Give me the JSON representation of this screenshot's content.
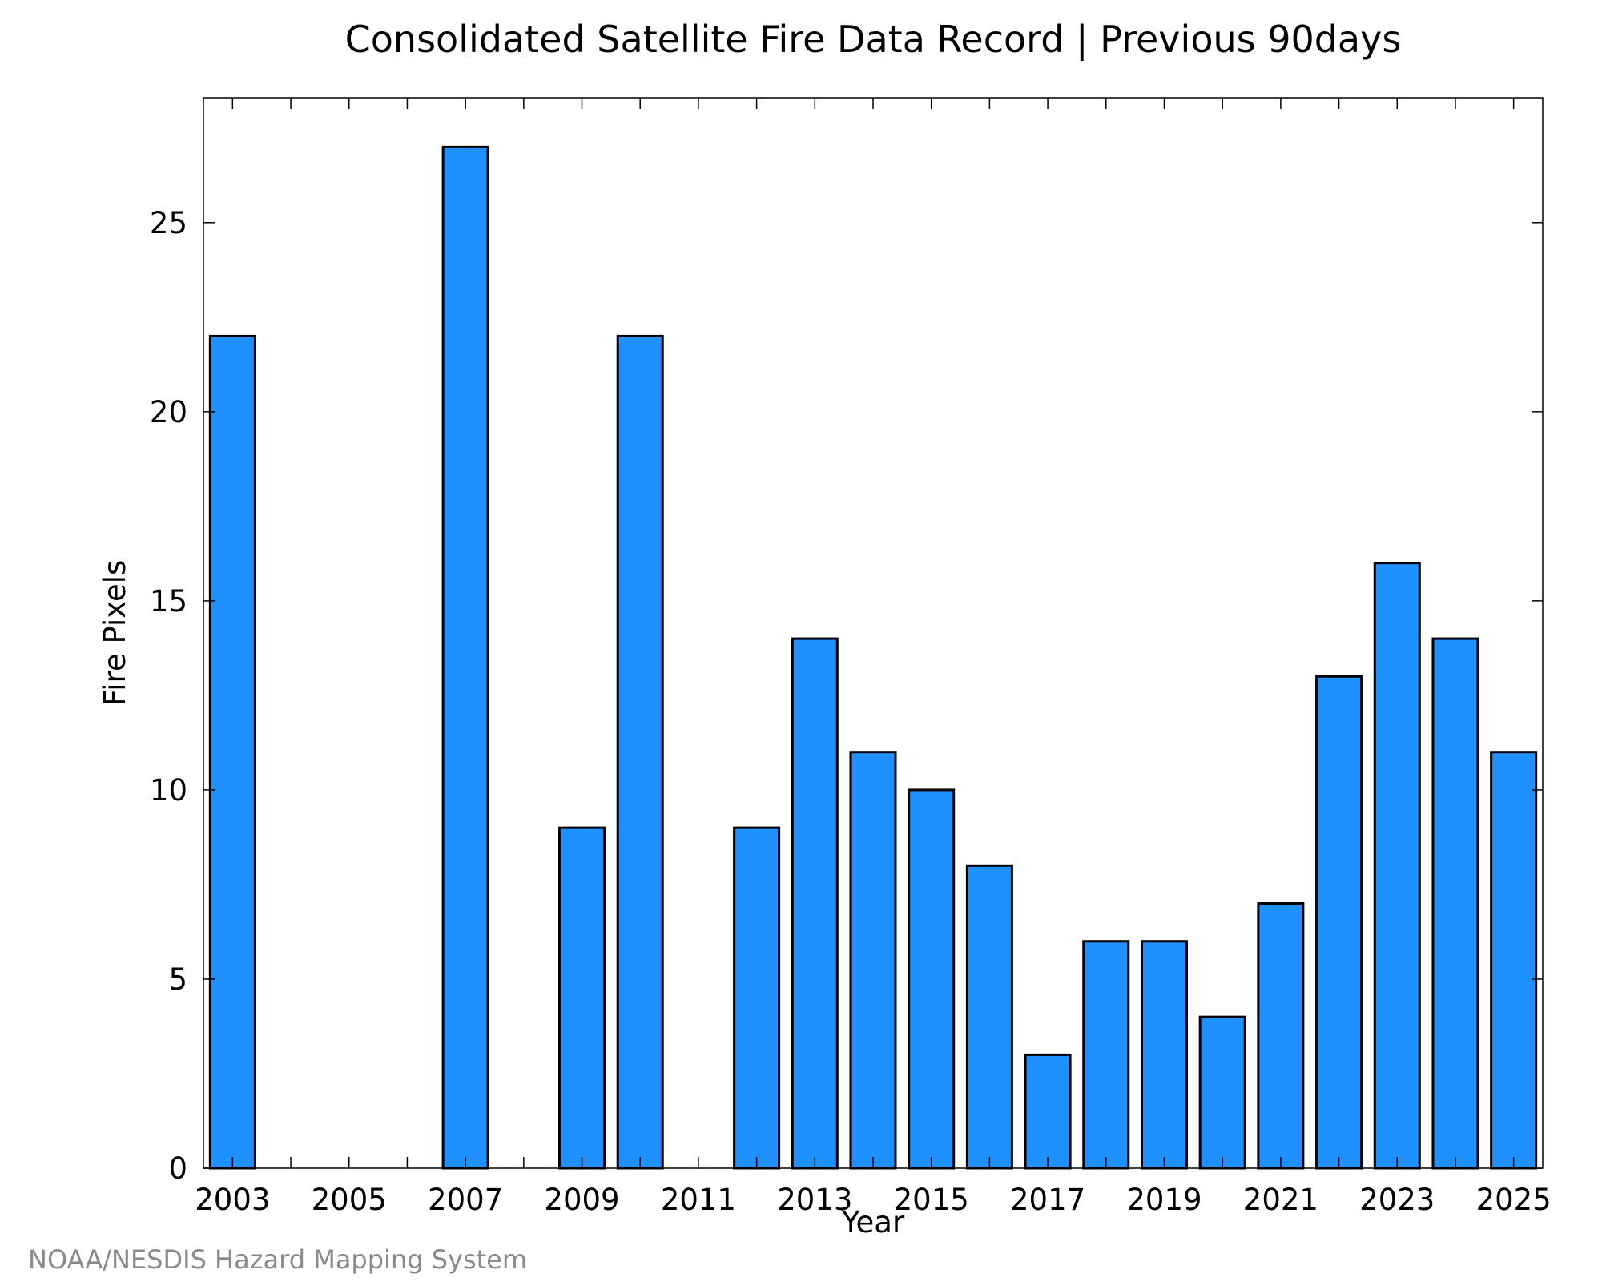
{
  "chart_data": {
    "type": "bar",
    "title": "Consolidated Satellite Fire Data Record | Previous 90days",
    "xlabel": "Year",
    "ylabel": "Fire Pixels",
    "categories": [
      "2003",
      "2004",
      "2005",
      "2006",
      "2007",
      "2008",
      "2009",
      "2010",
      "2011",
      "2012",
      "2013",
      "2014",
      "2015",
      "2016",
      "2017",
      "2018",
      "2019",
      "2020",
      "2021",
      "2022",
      "2023",
      "2024",
      "2025"
    ],
    "values": [
      22,
      0,
      0,
      0,
      27,
      0,
      9,
      22,
      0,
      9,
      14,
      11,
      10,
      8,
      3,
      6,
      6,
      4,
      7,
      13,
      16,
      14,
      11
    ],
    "x_tick_labels": [
      "2003",
      "2005",
      "2007",
      "2009",
      "2011",
      "2013",
      "2015",
      "2017",
      "2019",
      "2021",
      "2023",
      "2025"
    ],
    "y_tick_labels": [
      "0",
      "5",
      "10",
      "15",
      "20",
      "25"
    ],
    "y_ticks": [
      0,
      5,
      10,
      15,
      20,
      25
    ],
    "ylim": [
      0,
      28.3
    ],
    "xlim": [
      2002.5,
      2025.5
    ],
    "grid": false,
    "legend": "none",
    "bar_color": "#1e90ff",
    "bar_edge_color": "#000000",
    "credit": "NOAA/NESDIS Hazard Mapping System"
  }
}
